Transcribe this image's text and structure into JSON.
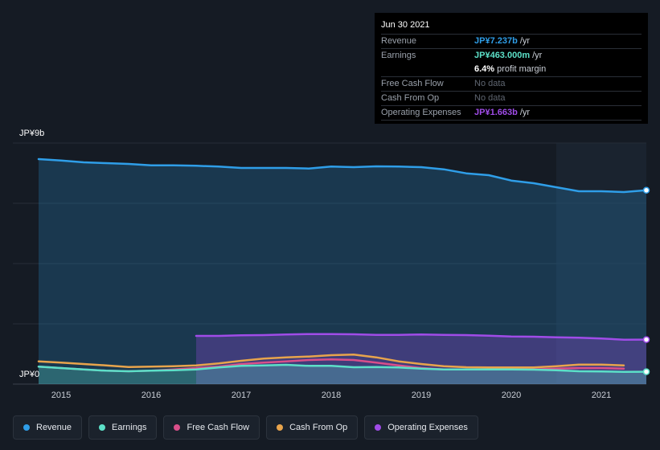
{
  "tooltip": {
    "date": "Jun 30 2021",
    "rows": [
      {
        "label": "Revenue",
        "value": "JP¥7.237b",
        "unit": "/yr",
        "color": "#2f9ee8"
      },
      {
        "label": "Earnings",
        "value": "JP¥463.000m",
        "unit": "/yr",
        "color": "#5ce0c8"
      },
      {
        "label": "",
        "value": "6.4%",
        "unit": "profit margin",
        "color": "#ffffff"
      },
      {
        "label": "Free Cash Flow",
        "value": "No data",
        "unit": "",
        "color": "#5f6671"
      },
      {
        "label": "Cash From Op",
        "value": "No data",
        "unit": "",
        "color": "#5f6671"
      },
      {
        "label": "Operating Expenses",
        "value": "JP¥1.663b",
        "unit": "/yr",
        "color": "#a04ce8"
      }
    ]
  },
  "legend": [
    {
      "label": "Revenue",
      "color": "#2f9ee8",
      "icon": "circle-dot"
    },
    {
      "label": "Earnings",
      "color": "#5ce0c8",
      "icon": "circle-dot"
    },
    {
      "label": "Free Cash Flow",
      "color": "#d94f8a",
      "icon": "circle-dot"
    },
    {
      "label": "Cash From Op",
      "color": "#e8a44c",
      "icon": "circle-dot"
    },
    {
      "label": "Operating Expenses",
      "color": "#a04ce8",
      "icon": "circle-dot"
    }
  ],
  "chart_data": {
    "type": "area",
    "ylabel_top": "JP¥9b",
    "ylabel_bottom": "JP¥0",
    "ylim": [
      0,
      9
    ],
    "xlim": [
      2014.75,
      2021.5
    ],
    "x_ticks": [
      {
        "value": 2015,
        "label": "2015"
      },
      {
        "value": 2016,
        "label": "2016"
      },
      {
        "value": 2017,
        "label": "2017"
      },
      {
        "value": 2018,
        "label": "2018"
      },
      {
        "value": 2019,
        "label": "2019"
      },
      {
        "value": 2020,
        "label": "2020"
      },
      {
        "value": 2021,
        "label": "2021"
      }
    ],
    "grid": true,
    "highlight_from": 2020.5,
    "series": [
      {
        "name": "Revenue",
        "color": "#2f9ee8",
        "fill": true,
        "points": [
          [
            2014.75,
            8.4
          ],
          [
            2015.0,
            8.35
          ],
          [
            2015.25,
            8.28
          ],
          [
            2015.5,
            8.25
          ],
          [
            2015.75,
            8.22
          ],
          [
            2016.0,
            8.17
          ],
          [
            2016.25,
            8.17
          ],
          [
            2016.5,
            8.15
          ],
          [
            2016.75,
            8.12
          ],
          [
            2017.0,
            8.07
          ],
          [
            2017.25,
            8.07
          ],
          [
            2017.5,
            8.07
          ],
          [
            2017.75,
            8.05
          ],
          [
            2018.0,
            8.12
          ],
          [
            2018.25,
            8.1
          ],
          [
            2018.5,
            8.13
          ],
          [
            2018.75,
            8.12
          ],
          [
            2019.0,
            8.1
          ],
          [
            2019.25,
            8.02
          ],
          [
            2019.5,
            7.87
          ],
          [
            2019.75,
            7.8
          ],
          [
            2020.0,
            7.6
          ],
          [
            2020.25,
            7.5
          ],
          [
            2020.5,
            7.35
          ],
          [
            2020.75,
            7.2
          ],
          [
            2021.0,
            7.2
          ],
          [
            2021.25,
            7.17
          ],
          [
            2021.5,
            7.237
          ]
        ]
      },
      {
        "name": "Operating Expenses",
        "color": "#a04ce8",
        "fill": true,
        "points": [
          [
            2016.5,
            1.8
          ],
          [
            2016.75,
            1.8
          ],
          [
            2017.0,
            1.82
          ],
          [
            2017.25,
            1.83
          ],
          [
            2017.5,
            1.85
          ],
          [
            2017.75,
            1.87
          ],
          [
            2018.0,
            1.87
          ],
          [
            2018.25,
            1.86
          ],
          [
            2018.5,
            1.84
          ],
          [
            2018.75,
            1.84
          ],
          [
            2019.0,
            1.85
          ],
          [
            2019.25,
            1.84
          ],
          [
            2019.5,
            1.83
          ],
          [
            2019.75,
            1.81
          ],
          [
            2020.0,
            1.78
          ],
          [
            2020.25,
            1.77
          ],
          [
            2020.5,
            1.75
          ],
          [
            2020.75,
            1.73
          ],
          [
            2021.0,
            1.7
          ],
          [
            2021.25,
            1.66
          ],
          [
            2021.5,
            1.663
          ]
        ]
      },
      {
        "name": "Cash From Op",
        "color": "#e8a44c",
        "fill": false,
        "points": [
          [
            2014.75,
            0.85
          ],
          [
            2015.0,
            0.8
          ],
          [
            2015.25,
            0.75
          ],
          [
            2015.5,
            0.7
          ],
          [
            2015.75,
            0.64
          ],
          [
            2016.0,
            0.65
          ],
          [
            2016.25,
            0.67
          ],
          [
            2016.5,
            0.7
          ],
          [
            2016.75,
            0.77
          ],
          [
            2017.0,
            0.87
          ],
          [
            2017.25,
            0.95
          ],
          [
            2017.5,
            1.0
          ],
          [
            2017.75,
            1.03
          ],
          [
            2018.0,
            1.08
          ],
          [
            2018.25,
            1.1
          ],
          [
            2018.5,
            1.0
          ],
          [
            2018.75,
            0.85
          ],
          [
            2019.0,
            0.75
          ],
          [
            2019.25,
            0.67
          ],
          [
            2019.5,
            0.63
          ],
          [
            2019.75,
            0.62
          ],
          [
            2020.0,
            0.62
          ],
          [
            2020.25,
            0.62
          ],
          [
            2020.5,
            0.67
          ],
          [
            2020.75,
            0.73
          ],
          [
            2021.0,
            0.73
          ],
          [
            2021.25,
            0.7
          ]
        ]
      },
      {
        "name": "Free Cash Flow",
        "color": "#d94f8a",
        "fill": false,
        "points": [
          [
            2014.75,
            0.65
          ],
          [
            2015.0,
            0.6
          ],
          [
            2015.25,
            0.55
          ],
          [
            2015.5,
            0.5
          ],
          [
            2015.75,
            0.48
          ],
          [
            2016.0,
            0.5
          ],
          [
            2016.25,
            0.55
          ],
          [
            2016.5,
            0.6
          ],
          [
            2016.75,
            0.65
          ],
          [
            2017.0,
            0.75
          ],
          [
            2017.25,
            0.8
          ],
          [
            2017.5,
            0.85
          ],
          [
            2017.75,
            0.9
          ],
          [
            2018.0,
            0.92
          ],
          [
            2018.25,
            0.9
          ],
          [
            2018.5,
            0.8
          ],
          [
            2018.75,
            0.7
          ],
          [
            2019.0,
            0.6
          ],
          [
            2019.25,
            0.55
          ],
          [
            2019.5,
            0.55
          ],
          [
            2019.75,
            0.55
          ],
          [
            2020.0,
            0.55
          ],
          [
            2020.25,
            0.55
          ],
          [
            2020.5,
            0.58
          ],
          [
            2020.75,
            0.6
          ],
          [
            2021.0,
            0.6
          ],
          [
            2021.25,
            0.58
          ]
        ]
      },
      {
        "name": "Earnings",
        "color": "#5ce0c8",
        "fill": true,
        "points": [
          [
            2014.75,
            0.65
          ],
          [
            2015.0,
            0.6
          ],
          [
            2015.25,
            0.55
          ],
          [
            2015.5,
            0.5
          ],
          [
            2015.75,
            0.48
          ],
          [
            2016.0,
            0.5
          ],
          [
            2016.25,
            0.52
          ],
          [
            2016.5,
            0.55
          ],
          [
            2016.75,
            0.62
          ],
          [
            2017.0,
            0.68
          ],
          [
            2017.25,
            0.7
          ],
          [
            2017.5,
            0.72
          ],
          [
            2017.75,
            0.68
          ],
          [
            2018.0,
            0.68
          ],
          [
            2018.25,
            0.63
          ],
          [
            2018.5,
            0.64
          ],
          [
            2018.75,
            0.62
          ],
          [
            2019.0,
            0.58
          ],
          [
            2019.25,
            0.55
          ],
          [
            2019.5,
            0.55
          ],
          [
            2019.75,
            0.55
          ],
          [
            2020.0,
            0.55
          ],
          [
            2020.25,
            0.54
          ],
          [
            2020.5,
            0.52
          ],
          [
            2020.75,
            0.48
          ],
          [
            2021.0,
            0.47
          ],
          [
            2021.25,
            0.46
          ],
          [
            2021.5,
            0.463
          ]
        ]
      }
    ]
  }
}
